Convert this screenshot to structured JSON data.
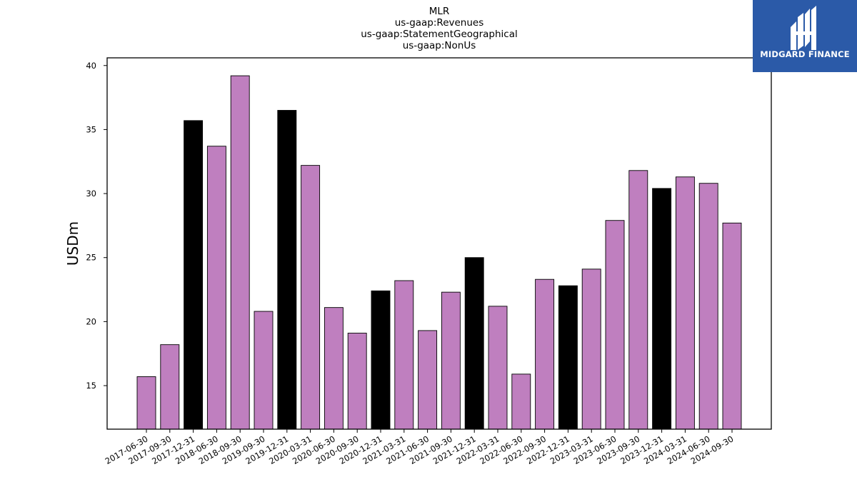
{
  "chart_data": {
    "type": "bar",
    "title_lines": [
      "MLR",
      "us-gaap:Revenues",
      "us-gaap:StatementGeographical",
      "us-gaap:NonUs"
    ],
    "ylabel": "USDm",
    "xlabel": "",
    "ylim": [
      11.6,
      40.6
    ],
    "yticks": [
      15,
      20,
      25,
      30,
      35,
      40
    ],
    "grid": false,
    "categories": [
      "2017-06-30",
      "2017-09-30",
      "2017-12-31",
      "2018-06-30",
      "2018-09-30",
      "2019-09-30",
      "2019-12-31",
      "2020-03-31",
      "2020-06-30",
      "2020-09-30",
      "2020-12-31",
      "2021-03-31",
      "2021-06-30",
      "2021-09-30",
      "2021-12-31",
      "2022-03-31",
      "2022-06-30",
      "2022-09-30",
      "2022-12-31",
      "2023-03-31",
      "2023-06-30",
      "2023-09-30",
      "2023-12-31",
      "2024-03-31",
      "2024-06-30",
      "2024-09-30"
    ],
    "values": [
      15.7,
      18.2,
      35.7,
      33.7,
      39.2,
      20.8,
      36.5,
      32.2,
      21.1,
      19.1,
      22.4,
      23.2,
      19.3,
      22.3,
      25.0,
      21.2,
      15.9,
      23.3,
      22.8,
      24.1,
      27.9,
      31.8,
      30.4,
      31.3,
      30.8,
      27.7
    ],
    "colors": {
      "quarter": "#bf7fbf",
      "year_end": "#000000",
      "edge": "#000000"
    }
  },
  "logo": {
    "text": "MIDGARD FINANCE",
    "background": "#2b5aa8",
    "icon": "midgard-m-logo-icon"
  }
}
